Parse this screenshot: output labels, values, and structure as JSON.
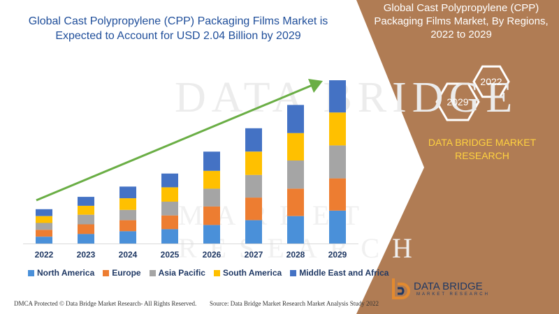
{
  "title": "Global Cast Polypropylene (CPP) Packaging Films Market is Expected to Account for USD 2.04 Billion by 2029",
  "panel": {
    "title": "Global Cast Polypropylene (CPP) Packaging Films Market, By Regions, 2022 to 2029",
    "hex_year_1": "2029",
    "hex_year_2": "2022",
    "brand": "DATA BRIDGE MARKET RESEARCH"
  },
  "watermark": {
    "line1": "DATA BRIDGE",
    "line2": "MARKET RESEARCH"
  },
  "footer": {
    "left": "DMCA Protected © Data Bridge Market Research- All Rights Reserved.",
    "right": "Source: Data Bridge Market Research Market Analysis Study 2022"
  },
  "logo": {
    "text": "DATA BRIDGE",
    "sub": "MARKET RESEARCH"
  },
  "colors": {
    "panel": "#b07c54",
    "arrow": "#6aae45",
    "north_america": "#4a90d9",
    "europe": "#ed7d31",
    "asia_pacific": "#a5a5a5",
    "south_america": "#ffc000",
    "middle_east_africa": "#4472c4"
  },
  "chart_data": {
    "type": "bar",
    "stacked": true,
    "categories": [
      "2022",
      "2023",
      "2024",
      "2025",
      "2026",
      "2027",
      "2028",
      "2029"
    ],
    "series": [
      {
        "name": "North America",
        "color": "#4a90d9",
        "values": [
          10,
          14,
          18,
          21,
          27,
          34,
          40,
          48
        ]
      },
      {
        "name": "Europe",
        "color": "#ed7d31",
        "values": [
          10,
          14,
          16,
          20,
          27,
          33,
          40,
          47
        ]
      },
      {
        "name": "Asia Pacific",
        "color": "#a5a5a5",
        "values": [
          10,
          14,
          15,
          20,
          26,
          33,
          41,
          48
        ]
      },
      {
        "name": "South America",
        "color": "#ffc000",
        "values": [
          10,
          13,
          17,
          21,
          26,
          34,
          40,
          48
        ]
      },
      {
        "name": "Middle East and Africa",
        "color": "#4472c4",
        "values": [
          10,
          13,
          17,
          20,
          28,
          34,
          41,
          47
        ]
      }
    ],
    "legend_position": "bottom",
    "grid": false,
    "trend_arrow": true
  }
}
